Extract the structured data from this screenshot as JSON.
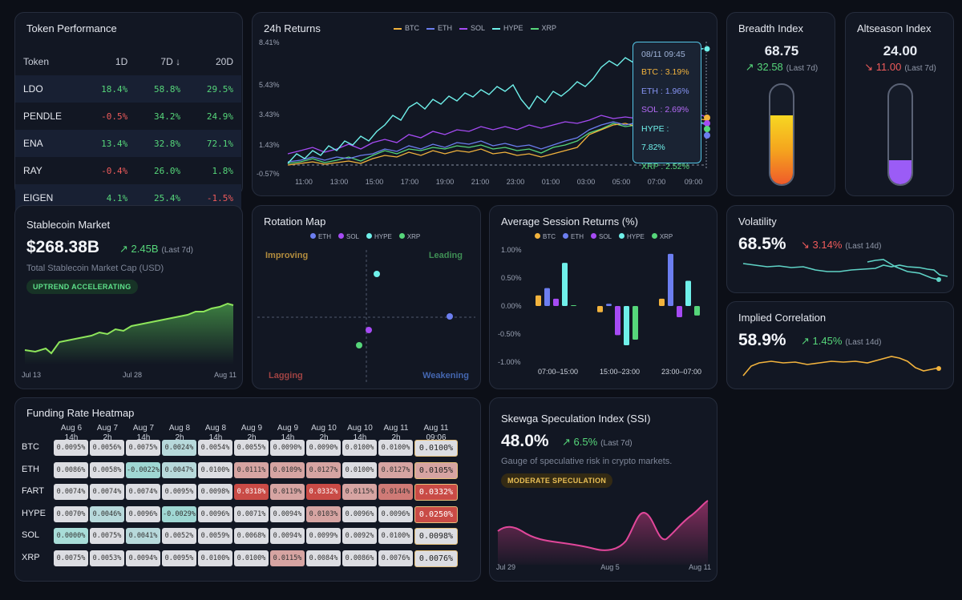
{
  "colors": {
    "btc": "#f2b33d",
    "eth": "#6c7ef0",
    "sol": "#a64bf4",
    "hype": "#6ff0ea",
    "xrp": "#56d67a",
    "pos": "#56d67a",
    "neg": "#ef5b5b"
  },
  "token_performance": {
    "title": "Token Performance",
    "headers": [
      "Token",
      "1D",
      "7D ↓",
      "20D"
    ],
    "rows": [
      {
        "token": "LDO",
        "d1": "18.4%",
        "d7": "58.8%",
        "d20": "29.5%"
      },
      {
        "token": "PENDLE",
        "d1": "-0.5%",
        "d7": "34.2%",
        "d20": "24.9%"
      },
      {
        "token": "ENA",
        "d1": "13.4%",
        "d7": "32.8%",
        "d20": "72.1%"
      },
      {
        "token": "RAY",
        "d1": "-0.4%",
        "d7": "26.0%",
        "d20": "1.8%"
      },
      {
        "token": "EIGEN",
        "d1": "4.1%",
        "d7": "25.4%",
        "d20": "-1.5%"
      }
    ]
  },
  "returns_24h": {
    "title": "24h Returns",
    "legend": [
      "BTC",
      "ETH",
      "SOL",
      "HYPE",
      "XRP"
    ],
    "y_ticks": [
      "8.41%",
      "5.43%",
      "3.43%",
      "1.43%",
      "-0.57%"
    ],
    "x_ticks": [
      "11:00",
      "13:00",
      "15:00",
      "17:00",
      "19:00",
      "21:00",
      "23:00",
      "01:00",
      "03:00",
      "05:00",
      "07:00",
      "09:00"
    ],
    "tooltip": {
      "time": "08/11 09:45",
      "btc": "BTC : 3.19%",
      "eth": "ETH : 1.96%",
      "sol": "SOL : 2.69%",
      "hype": "HYPE : 7.82%",
      "xrp": "XRP : 2.52%"
    }
  },
  "breadth": {
    "title": "Breadth Index",
    "value": "68.75",
    "change": "32.58",
    "period": "(Last 7d)",
    "level": 0.69
  },
  "altseason": {
    "title": "Altseason Index",
    "value": "24.00",
    "change": "11.00",
    "period": "(Last 7d)",
    "level": 0.24
  },
  "stablecoin": {
    "title": "Stablecoin Market",
    "value": "$268.38B",
    "change": "2.45B",
    "period": "(Last 7d)",
    "subtitle": "Total Stablecoin Market Cap (USD)",
    "badge": "UPTREND ACCELERATING",
    "x_ticks": [
      "Jul 13",
      "Jul 28",
      "Aug 11"
    ]
  },
  "rotation": {
    "title": "Rotation Map",
    "legend": [
      "ETH",
      "SOL",
      "HYPE",
      "XRP"
    ],
    "q_improving": "Improving",
    "q_leading": "Leading",
    "q_lagging": "Lagging",
    "q_weakening": "Weakening"
  },
  "session_returns": {
    "title": "Average Session Returns (%)",
    "legend": [
      "BTC",
      "ETH",
      "SOL",
      "HYPE",
      "XRP"
    ],
    "y_ticks": [
      "1.00%",
      "0.50%",
      "0.00%",
      "-0.50%",
      "-1.00%"
    ],
    "chart_data": {
      "type": "bar",
      "categories": [
        "07:00–15:00",
        "15:00–23:00",
        "23:00–07:00"
      ],
      "series": [
        {
          "name": "BTC",
          "values": [
            0.19,
            -0.11,
            0.13
          ]
        },
        {
          "name": "ETH",
          "values": [
            0.32,
            0.04,
            0.93
          ]
        },
        {
          "name": "SOL",
          "values": [
            0.13,
            -0.52,
            -0.2
          ]
        },
        {
          "name": "HYPE",
          "values": [
            0.77,
            -0.7,
            0.45
          ]
        },
        {
          "name": "XRP",
          "values": [
            0.01,
            -0.6,
            -0.17
          ]
        }
      ],
      "ylim": [
        -1,
        1
      ]
    }
  },
  "volatility": {
    "title": "Volatility",
    "value": "68.5%",
    "change": "3.14%",
    "period": "(Last 14d)"
  },
  "correlation": {
    "title": "Implied Correlation",
    "value": "58.9%",
    "change": "1.45%",
    "period": "(Last 14d)"
  },
  "funding": {
    "title": "Funding Rate Heatmap",
    "columns": [
      [
        "Aug 6",
        "14h"
      ],
      [
        "Aug 7",
        "2h"
      ],
      [
        "Aug 7",
        "14h"
      ],
      [
        "Aug 8",
        "2h"
      ],
      [
        "Aug 8",
        "14h"
      ],
      [
        "Aug 9",
        "2h"
      ],
      [
        "Aug 9",
        "14h"
      ],
      [
        "Aug 10",
        "2h"
      ],
      [
        "Aug 10",
        "14h"
      ],
      [
        "Aug 11",
        "2h"
      ],
      [
        "Aug 11",
        "09:06"
      ]
    ],
    "rows": [
      {
        "name": "BTC",
        "cells": [
          "0.0095%",
          "0.0056%",
          "0.0075%",
          "0.0024%",
          "0.0054%",
          "0.0055%",
          "0.0090%",
          "0.0090%",
          "0.0100%",
          "0.0100%"
        ],
        "last": "0.0100%"
      },
      {
        "name": "ETH",
        "cells": [
          "0.0086%",
          "0.0058%",
          "-0.0022%",
          "0.0047%",
          "0.0100%",
          "0.0111%",
          "0.0109%",
          "0.0127%",
          "0.0100%",
          "0.0127%"
        ],
        "last": "0.0105%"
      },
      {
        "name": "FART",
        "cells": [
          "0.0074%",
          "0.0074%",
          "0.0074%",
          "0.0095%",
          "0.0098%",
          "0.0318%",
          "0.0119%",
          "0.0332%",
          "0.0115%",
          "0.0144%"
        ],
        "last": "0.0332%"
      },
      {
        "name": "HYPE",
        "cells": [
          "0.0070%",
          "0.0046%",
          "0.0096%",
          "-0.0029%",
          "0.0096%",
          "0.0071%",
          "0.0094%",
          "0.0103%",
          "0.0096%",
          "0.0096%"
        ],
        "last": "0.0250%"
      },
      {
        "name": "SOL",
        "cells": [
          "0.0000%",
          "0.0075%",
          "0.0041%",
          "0.0052%",
          "0.0059%",
          "0.0068%",
          "0.0094%",
          "0.0099%",
          "0.0092%",
          "0.0100%"
        ],
        "last": "0.0098%"
      },
      {
        "name": "XRP",
        "cells": [
          "0.0075%",
          "0.0053%",
          "0.0094%",
          "0.0095%",
          "0.0100%",
          "0.0100%",
          "0.0115%",
          "0.0084%",
          "0.0086%",
          "0.0076%"
        ],
        "last": "0.0076%"
      }
    ]
  },
  "ssi": {
    "title": "Skewga Speculation Index (SSI)",
    "value": "48.0%",
    "change": "6.5%",
    "period": "(Last 7d)",
    "subtitle": "Gauge of speculative risk in crypto markets.",
    "badge": "MODERATE SPECULATION",
    "x_ticks": [
      "Jul 29",
      "Aug 5",
      "Aug 11"
    ]
  }
}
